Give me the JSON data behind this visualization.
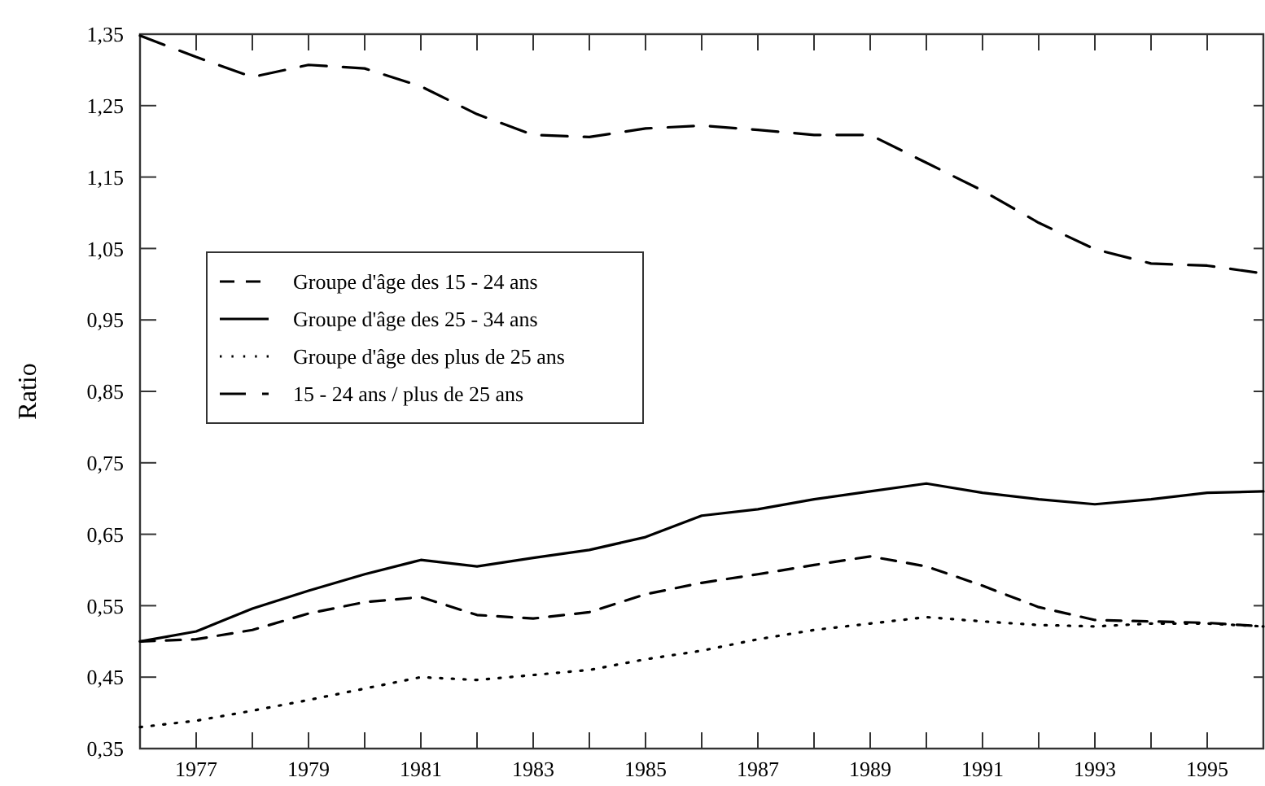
{
  "chart_data": {
    "type": "line",
    "ylabel": "Ratio",
    "x": [
      1976,
      1977,
      1978,
      1979,
      1980,
      1981,
      1982,
      1983,
      1984,
      1985,
      1986,
      1987,
      1988,
      1989,
      1990,
      1991,
      1992,
      1993,
      1994,
      1995,
      1996
    ],
    "series": [
      {
        "name": "Groupe d'âge des 15 - 24 ans",
        "color": "#000000",
        "line_style": "dashed",
        "values": [
          0.5,
          0.503,
          0.516,
          0.539,
          0.555,
          0.562,
          0.537,
          0.532,
          0.541,
          0.566,
          0.582,
          0.594,
          0.607,
          0.619,
          0.605,
          0.578,
          0.548,
          0.53,
          0.528,
          0.526,
          0.521
        ]
      },
      {
        "name": "Groupe d'âge des 25 - 34 ans",
        "color": "#000000",
        "line_style": "solid",
        "values": [
          0.5,
          0.514,
          0.546,
          0.571,
          0.594,
          0.614,
          0.605,
          0.617,
          0.628,
          0.646,
          0.676,
          0.685,
          0.699,
          0.71,
          0.721,
          0.708,
          0.699,
          0.692,
          0.699,
          0.708,
          0.71
        ]
      },
      {
        "name": "Groupe d'âge des plus de 25 ans",
        "color": "#000000",
        "line_style": "dotted",
        "values": [
          0.38,
          0.389,
          0.403,
          0.418,
          0.434,
          0.45,
          0.446,
          0.453,
          0.46,
          0.475,
          0.487,
          0.503,
          0.516,
          0.525,
          0.534,
          0.528,
          0.523,
          0.521,
          0.525,
          0.525,
          0.521
        ]
      },
      {
        "name": "15 - 24 ans / plus de 25 ans",
        "color": "#000000",
        "line_style": "dashed",
        "values": [
          1.348,
          1.318,
          1.29,
          1.307,
          1.302,
          1.277,
          1.238,
          1.209,
          1.206,
          1.218,
          1.222,
          1.216,
          1.209,
          1.209,
          1.17,
          1.131,
          1.086,
          1.049,
          1.029,
          1.026,
          1.015
        ]
      }
    ],
    "xlim": [
      1976,
      1996
    ],
    "xticks": [
      {
        "value": 1976,
        "label": null
      },
      1977,
      {
        "value": 1978,
        "label": null
      },
      1979,
      {
        "value": 1980,
        "label": null
      },
      1981,
      {
        "value": 1982,
        "label": null
      },
      1983,
      {
        "value": 1984,
        "label": null
      },
      1985,
      {
        "value": 1986,
        "label": null
      },
      1987,
      {
        "value": 1988,
        "label": null
      },
      1989,
      {
        "value": 1990,
        "label": null
      },
      1991,
      {
        "value": 1992,
        "label": null
      },
      1993,
      {
        "value": 1994,
        "label": null
      },
      1995
    ],
    "ylim": [
      0.35,
      1.35
    ],
    "yticks": [
      {
        "value": 0.35,
        "label": "0,35"
      },
      {
        "value": 0.45,
        "label": "0,45"
      },
      {
        "value": 0.55,
        "label": "0,55"
      },
      {
        "value": 0.65,
        "label": "0,65"
      },
      {
        "value": 0.75,
        "label": "0,75"
      },
      {
        "value": 0.85,
        "label": "0,85"
      },
      {
        "value": 0.95,
        "label": "0,95"
      },
      {
        "value": 1.05,
        "label": "1,05"
      },
      {
        "value": 1.15,
        "label": "1,15"
      },
      {
        "value": 1.25,
        "label": "1,25"
      },
      {
        "value": 1.35,
        "label": "1,35"
      }
    ],
    "grid": false,
    "legend": "left",
    "marker": "none"
  }
}
